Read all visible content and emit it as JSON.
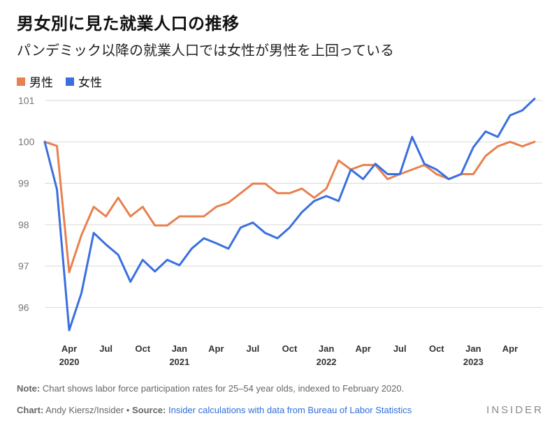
{
  "header": {
    "title": "男女別に見た就業人口の推移",
    "subtitle": "パンデミック以降の就業人口では女性が男性を上回っている"
  },
  "legend": [
    {
      "label": "男性",
      "color": "#e8804f"
    },
    {
      "label": "女性",
      "color": "#3a6fe0"
    }
  ],
  "footer": {
    "note_label": "Note:",
    "note_text": " Chart shows labor force participation rates for 25–54 year olds, indexed to February 2020.",
    "chart_label": "Chart:",
    "chart_author": " Andy Kiersz/Insider",
    "bullet": " • ",
    "source_label": "Source:",
    "source_text": " Insider calculations with data from Bureau of Labor Statistics",
    "brand": "INSIDER"
  },
  "chart_data": {
    "type": "line",
    "x": [
      "2020-02",
      "2020-03",
      "2020-04",
      "2020-05",
      "2020-06",
      "2020-07",
      "2020-08",
      "2020-09",
      "2020-10",
      "2020-11",
      "2020-12",
      "2021-01",
      "2021-02",
      "2021-03",
      "2021-04",
      "2021-05",
      "2021-06",
      "2021-07",
      "2021-08",
      "2021-09",
      "2021-10",
      "2021-11",
      "2021-12",
      "2022-01",
      "2022-02",
      "2022-03",
      "2022-04",
      "2022-05",
      "2022-06",
      "2022-07",
      "2022-08",
      "2022-09",
      "2022-10",
      "2022-11",
      "2022-12",
      "2023-01",
      "2023-02",
      "2023-03",
      "2023-04",
      "2023-05",
      "2023-06"
    ],
    "series": [
      {
        "name": "男性",
        "color": "#e8804f",
        "values": [
          100.0,
          99.9,
          96.85,
          97.75,
          98.43,
          98.2,
          98.65,
          98.2,
          98.43,
          97.98,
          97.98,
          98.2,
          98.2,
          98.2,
          98.43,
          98.53,
          98.76,
          98.99,
          98.99,
          98.76,
          98.76,
          98.87,
          98.65,
          98.87,
          99.55,
          99.33,
          99.44,
          99.44,
          99.1,
          99.22,
          99.33,
          99.44,
          99.22,
          99.1,
          99.22,
          99.22,
          99.66,
          99.89,
          100.0,
          99.89,
          100.0
        ]
      },
      {
        "name": "女性",
        "color": "#3a6fe0",
        "values": [
          100.0,
          98.85,
          95.45,
          96.35,
          97.8,
          97.52,
          97.27,
          96.62,
          97.15,
          96.87,
          97.15,
          97.02,
          97.42,
          97.67,
          97.55,
          97.42,
          97.93,
          98.05,
          97.8,
          97.67,
          97.93,
          98.3,
          98.57,
          98.69,
          98.57,
          99.33,
          99.1,
          99.47,
          99.22,
          99.22,
          100.12,
          99.47,
          99.33,
          99.1,
          99.22,
          99.87,
          100.25,
          100.12,
          100.64,
          100.76,
          101.04
        ]
      }
    ],
    "y_ticks": [
      96,
      97,
      98,
      99,
      100,
      101
    ],
    "ylim": [
      95.3,
      101.15
    ],
    "x_ticks": [
      {
        "month": "Apr",
        "year": "2020",
        "index": 2
      },
      {
        "month": "Jul",
        "year": "",
        "index": 5
      },
      {
        "month": "Oct",
        "year": "",
        "index": 8
      },
      {
        "month": "Jan",
        "year": "2021",
        "index": 11
      },
      {
        "month": "Apr",
        "year": "",
        "index": 14
      },
      {
        "month": "Jul",
        "year": "",
        "index": 17
      },
      {
        "month": "Oct",
        "year": "",
        "index": 20
      },
      {
        "month": "Jan",
        "year": "2022",
        "index": 23
      },
      {
        "month": "Apr",
        "year": "",
        "index": 26
      },
      {
        "month": "Jul",
        "year": "",
        "index": 29
      },
      {
        "month": "Oct",
        "year": "",
        "index": 32
      },
      {
        "month": "Jan",
        "year": "2023",
        "index": 35
      },
      {
        "month": "Apr",
        "year": "",
        "index": 38
      }
    ],
    "grid": "horizontal",
    "legend_position": "top-left"
  }
}
